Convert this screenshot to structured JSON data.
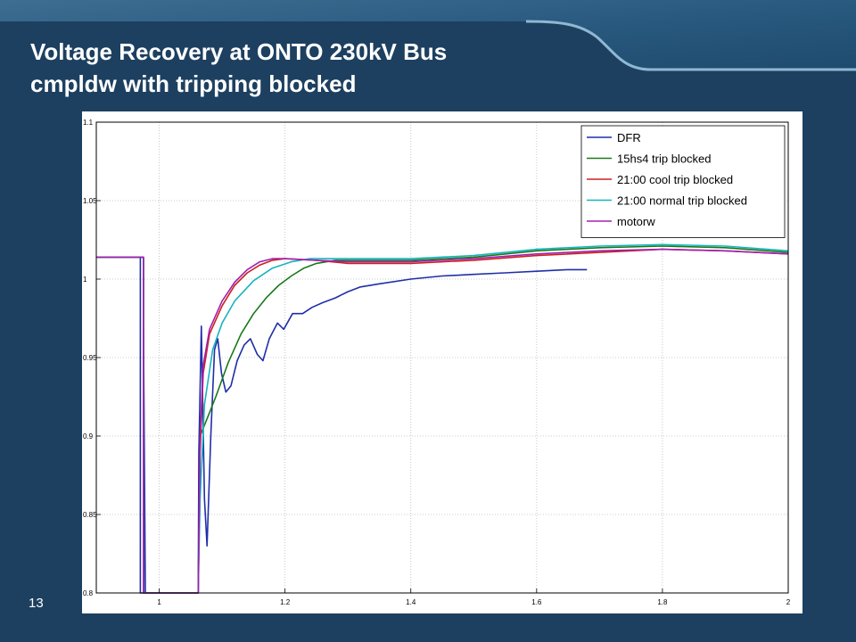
{
  "slide": {
    "title_line1": "Voltage Recovery at ONTO 230kV Bus",
    "title_line2": "cmpldw with tripping blocked",
    "page_number": "13",
    "colors": {
      "background": "#1d4060",
      "title_text": "#ffffff"
    }
  },
  "chart_data": {
    "type": "line",
    "title": "",
    "xlabel": "",
    "ylabel": "",
    "xlim": [
      0.9,
      2.0
    ],
    "ylim": [
      0.8,
      1.1
    ],
    "grid": true,
    "legend_position": "top-right",
    "x_ticks": [
      "1",
      "1.2",
      "1.4",
      "1.6",
      "1.8",
      "2"
    ],
    "y_ticks": [
      "0.8",
      "0.85",
      "0.9",
      "0.95",
      "1",
      "1.05",
      "1.1"
    ],
    "series": [
      {
        "name": "DFR",
        "color": "#1f2fa8",
        "points": [
          [
            0.9,
            1.014
          ],
          [
            0.97,
            1.014
          ],
          [
            0.97,
            0.8
          ],
          [
            0.975,
            0.8
          ],
          [
            0.975,
            0.97
          ],
          [
            0.978,
            0.8
          ],
          [
            1.062,
            0.8
          ],
          [
            1.063,
            0.89
          ],
          [
            1.067,
            0.97
          ],
          [
            1.072,
            0.86
          ],
          [
            1.076,
            0.83
          ],
          [
            1.082,
            0.9
          ],
          [
            1.088,
            0.955
          ],
          [
            1.093,
            0.962
          ],
          [
            1.099,
            0.94
          ],
          [
            1.106,
            0.928
          ],
          [
            1.114,
            0.932
          ],
          [
            1.124,
            0.948
          ],
          [
            1.135,
            0.958
          ],
          [
            1.145,
            0.962
          ],
          [
            1.156,
            0.952
          ],
          [
            1.165,
            0.948
          ],
          [
            1.175,
            0.962
          ],
          [
            1.188,
            0.972
          ],
          [
            1.198,
            0.968
          ],
          [
            1.212,
            0.978
          ],
          [
            1.228,
            0.978
          ],
          [
            1.243,
            0.982
          ],
          [
            1.26,
            0.985
          ],
          [
            1.28,
            0.988
          ],
          [
            1.3,
            0.992
          ],
          [
            1.32,
            0.995
          ],
          [
            1.35,
            0.997
          ],
          [
            1.4,
            1.0
          ],
          [
            1.45,
            1.002
          ],
          [
            1.5,
            1.003
          ],
          [
            1.55,
            1.004
          ],
          [
            1.6,
            1.005
          ],
          [
            1.65,
            1.006
          ],
          [
            1.68,
            1.006
          ]
        ]
      },
      {
        "name": "15hs4 trip blocked",
        "color": "#1a7a1a",
        "points": [
          [
            0.9,
            1.014
          ],
          [
            0.975,
            1.014
          ],
          [
            0.975,
            0.8
          ],
          [
            1.062,
            0.8
          ],
          [
            1.065,
            0.9
          ],
          [
            1.075,
            0.91
          ],
          [
            1.09,
            0.925
          ],
          [
            1.11,
            0.947
          ],
          [
            1.13,
            0.965
          ],
          [
            1.15,
            0.978
          ],
          [
            1.17,
            0.988
          ],
          [
            1.19,
            0.996
          ],
          [
            1.21,
            1.002
          ],
          [
            1.23,
            1.007
          ],
          [
            1.25,
            1.01
          ],
          [
            1.28,
            1.012
          ],
          [
            1.32,
            1.012
          ],
          [
            1.4,
            1.012
          ],
          [
            1.5,
            1.014
          ],
          [
            1.6,
            1.018
          ],
          [
            1.7,
            1.02
          ],
          [
            1.8,
            1.021
          ],
          [
            1.9,
            1.02
          ],
          [
            2.0,
            1.017
          ]
        ]
      },
      {
        "name": "21:00 cool trip blocked",
        "color": "#cc2020",
        "points": [
          [
            0.9,
            1.014
          ],
          [
            0.975,
            1.014
          ],
          [
            0.975,
            0.8
          ],
          [
            1.062,
            0.8
          ],
          [
            1.065,
            0.89
          ],
          [
            1.07,
            0.94
          ],
          [
            1.08,
            0.965
          ],
          [
            1.1,
            0.983
          ],
          [
            1.12,
            0.996
          ],
          [
            1.14,
            1.004
          ],
          [
            1.16,
            1.009
          ],
          [
            1.18,
            1.012
          ],
          [
            1.2,
            1.013
          ],
          [
            1.25,
            1.012
          ],
          [
            1.3,
            1.01
          ],
          [
            1.4,
            1.01
          ],
          [
            1.5,
            1.012
          ],
          [
            1.6,
            1.015
          ],
          [
            1.7,
            1.017
          ],
          [
            1.8,
            1.019
          ],
          [
            1.9,
            1.018
          ],
          [
            2.0,
            1.016
          ]
        ]
      },
      {
        "name": "21:00 normal trip blocked",
        "color": "#18b4c0",
        "points": [
          [
            0.9,
            1.014
          ],
          [
            0.975,
            1.014
          ],
          [
            0.975,
            0.8
          ],
          [
            1.062,
            0.8
          ],
          [
            1.065,
            0.86
          ],
          [
            1.072,
            0.92
          ],
          [
            1.085,
            0.955
          ],
          [
            1.1,
            0.972
          ],
          [
            1.12,
            0.986
          ],
          [
            1.15,
            0.999
          ],
          [
            1.18,
            1.007
          ],
          [
            1.21,
            1.011
          ],
          [
            1.24,
            1.013
          ],
          [
            1.3,
            1.013
          ],
          [
            1.4,
            1.013
          ],
          [
            1.5,
            1.015
          ],
          [
            1.6,
            1.019
          ],
          [
            1.7,
            1.021
          ],
          [
            1.8,
            1.022
          ],
          [
            1.9,
            1.021
          ],
          [
            2.0,
            1.018
          ]
        ]
      },
      {
        "name": "motorw",
        "color": "#a020b0",
        "points": [
          [
            0.9,
            1.014
          ],
          [
            0.975,
            1.014
          ],
          [
            0.975,
            0.8
          ],
          [
            1.062,
            0.8
          ],
          [
            1.065,
            0.9
          ],
          [
            1.07,
            0.945
          ],
          [
            1.08,
            0.968
          ],
          [
            1.1,
            0.986
          ],
          [
            1.12,
            0.998
          ],
          [
            1.14,
            1.006
          ],
          [
            1.16,
            1.011
          ],
          [
            1.18,
            1.013
          ],
          [
            1.2,
            1.013
          ],
          [
            1.25,
            1.012
          ],
          [
            1.3,
            1.011
          ],
          [
            1.4,
            1.011
          ],
          [
            1.5,
            1.013
          ],
          [
            1.6,
            1.016
          ],
          [
            1.7,
            1.018
          ],
          [
            1.8,
            1.019
          ],
          [
            1.9,
            1.018
          ],
          [
            2.0,
            1.016
          ]
        ]
      }
    ]
  }
}
